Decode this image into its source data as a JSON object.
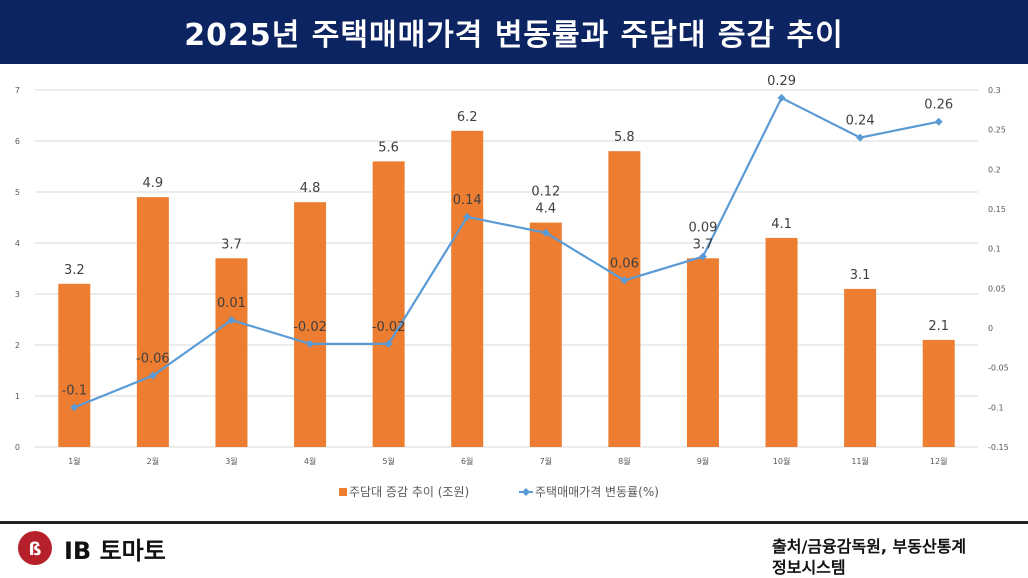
{
  "header": {
    "title": "2025년 주택매매가격 변동률과 주담대 증감 추이"
  },
  "chart_data": {
    "type": "bar+line",
    "categories": [
      "1월",
      "2월",
      "3월",
      "4월",
      "5월",
      "6월",
      "7월",
      "8월",
      "9월",
      "10월",
      "11월",
      "12월"
    ],
    "series": [
      {
        "name": "주담대 증감 추이 (조원)",
        "type": "bar",
        "axis": "left",
        "color": "#ed7d31",
        "values": [
          3.2,
          4.9,
          3.7,
          4.8,
          5.6,
          6.2,
          4.4,
          5.8,
          3.7,
          4.1,
          3.1,
          2.1
        ]
      },
      {
        "name": "주택매매가격 변동률(%)",
        "type": "line",
        "axis": "right",
        "color": "#5b9bd5",
        "values": [
          -0.1,
          -0.06,
          0.01,
          -0.02,
          -0.02,
          0.14,
          0.12,
          0.06,
          0.09,
          0.29,
          0.24,
          0.26
        ]
      }
    ],
    "left_axis": {
      "range": [
        0,
        7
      ],
      "ticks": [
        "0",
        "1",
        "2",
        "3",
        "4",
        "5",
        "6",
        "7"
      ]
    },
    "right_axis": {
      "range": [
        -0.15,
        0.3
      ],
      "ticks": [
        "-0.15",
        "-0.1",
        "-0.05",
        "0",
        "0.05",
        "0.1",
        "0.15",
        "0.2",
        "0.25",
        "0.3"
      ]
    },
    "grid": true,
    "legend": "bottom"
  },
  "footer": {
    "logo_text": "IB 토마토",
    "source_line1": "출처/금융감독원, 부동산통계",
    "source_line2": "정보시스템"
  }
}
